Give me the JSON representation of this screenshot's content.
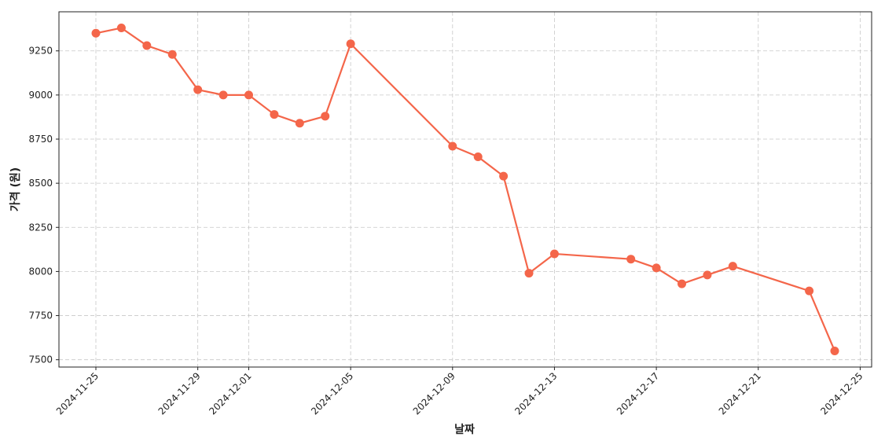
{
  "chart_data": {
    "type": "line",
    "x_label": "날짜",
    "y_label": "가격 (원)",
    "x": [
      "2024-11-25",
      "2024-11-26",
      "2024-11-27",
      "2024-11-28",
      "2024-11-29",
      "2024-11-30",
      "2024-12-01",
      "2024-12-02",
      "2024-12-03",
      "2024-12-04",
      "2024-12-05",
      "2024-12-09",
      "2024-12-10",
      "2024-12-11",
      "2024-12-12",
      "2024-12-13",
      "2024-12-16",
      "2024-12-17",
      "2024-12-18",
      "2024-12-19",
      "2024-12-20",
      "2024-12-23",
      "2024-12-24"
    ],
    "series": [
      {
        "color": "#f4664a",
        "values": [
          9350,
          9380,
          9280,
          9230,
          9030,
          9000,
          9000,
          8890,
          8840,
          8880,
          9290,
          8710,
          8650,
          8540,
          7990,
          8100,
          8070,
          8020,
          7930,
          7980,
          8030,
          7890,
          7550
        ]
      }
    ],
    "xlim": [
      "2024-11-23T13:12Z",
      "2024-12-25T10:48Z"
    ],
    "xticks": [
      "2024-11-25",
      "2024-11-29",
      "2024-12-01",
      "2024-12-05",
      "2024-12-09",
      "2024-12-13",
      "2024-12-17",
      "2024-12-21",
      "2024-12-25"
    ],
    "ylim": [
      7458.5,
      9471.5
    ],
    "yticks": [
      7500,
      7750,
      8000,
      8250,
      8500,
      8750,
      9000,
      9250
    ],
    "grid": true
  }
}
